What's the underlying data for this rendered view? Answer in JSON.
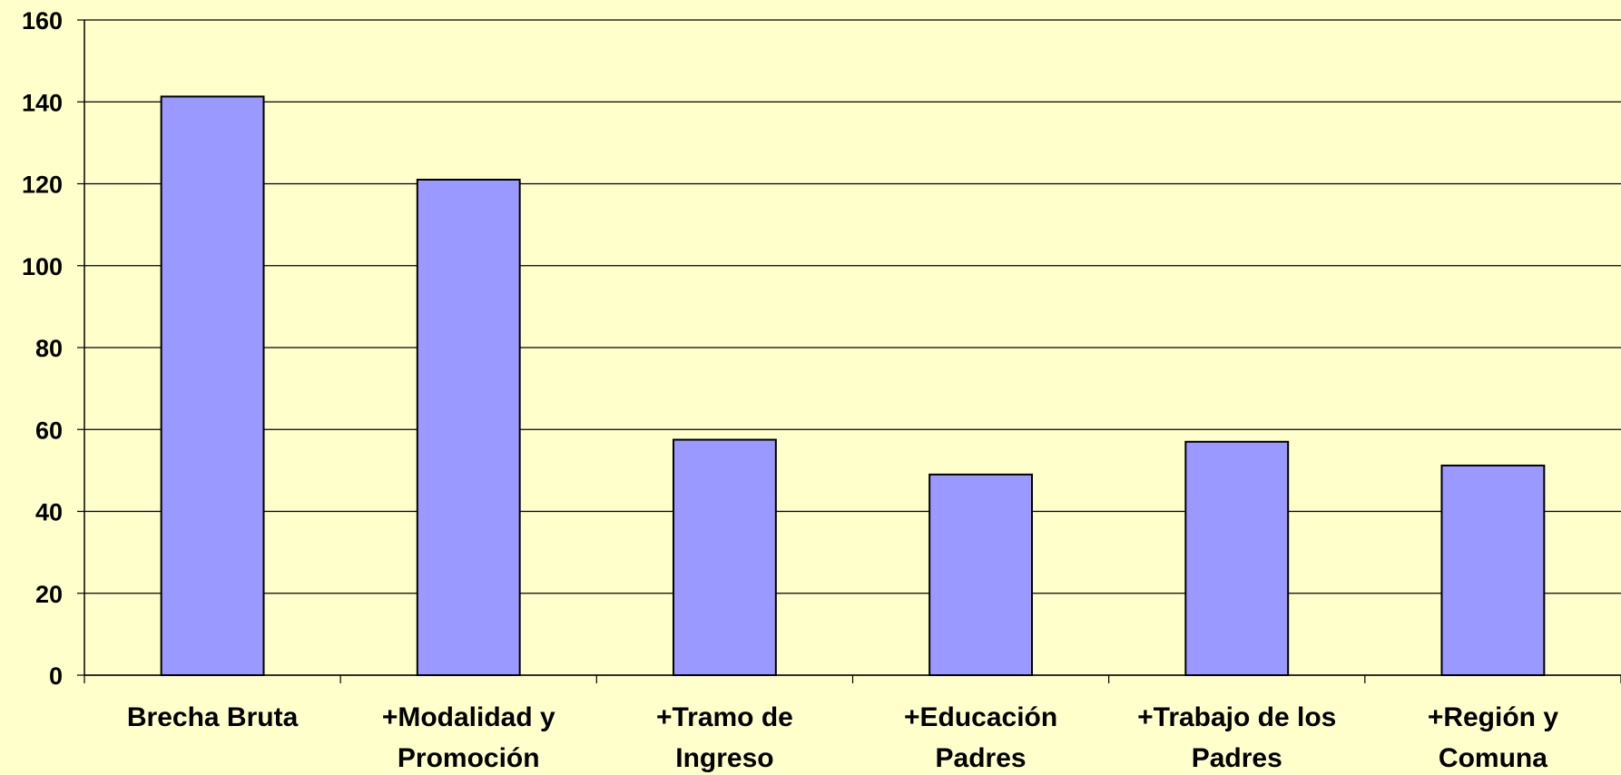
{
  "chart_data": {
    "type": "bar",
    "categories": [
      [
        "Brecha Bruta"
      ],
      [
        "+Modalidad y",
        "Promoción"
      ],
      [
        "+Tramo de",
        "Ingreso"
      ],
      [
        "+Educación",
        "Padres"
      ],
      [
        "+Trabajo de los",
        "Padres"
      ],
      [
        "+Región y",
        "Comuna"
      ]
    ],
    "values": [
      141.3,
      121,
      57.5,
      49,
      57,
      51.2
    ],
    "color": "#9999ff",
    "ylim": [
      0,
      160
    ],
    "yticks": [
      0,
      20,
      40,
      60,
      80,
      100,
      120,
      140,
      160
    ],
    "grid": true
  }
}
